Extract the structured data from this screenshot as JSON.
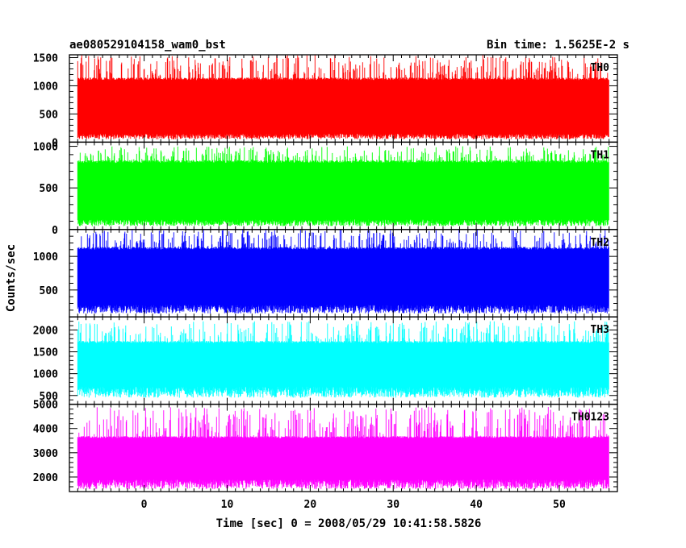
{
  "chart_data": {
    "type": "line",
    "title_left": "ae080529104158_wam0_bst",
    "title_right": "Bin time: 1.5625E-2 s",
    "xlabel": "Time [sec] 0 = 2008/05/29 10:41:58.5826",
    "ylabel": "Counts/sec",
    "xlim": [
      -9,
      57
    ],
    "x_data_range": [
      -8,
      56
    ],
    "x_ticks": [
      0,
      10,
      20,
      30,
      40,
      50
    ],
    "x_tick_labels": [
      "0",
      "10",
      "20",
      "30",
      "40",
      "50"
    ],
    "panels": [
      {
        "name": "TH0",
        "color": "#ff0000",
        "ylim": [
          0,
          1550
        ],
        "y_ticks": [
          0,
          500,
          1000,
          1500
        ],
        "y_tick_labels": [
          "0",
          "500",
          "1000",
          "1500"
        ],
        "typical_range": [
          150,
          1100
        ],
        "envelope": [
          50,
          1550
        ]
      },
      {
        "name": "TH1",
        "color": "#00ff00",
        "ylim": [
          0,
          1050
        ],
        "y_ticks": [
          0,
          500,
          1000
        ],
        "y_tick_labels": [
          "0",
          "500",
          "1000"
        ],
        "typical_range": [
          120,
          800
        ],
        "envelope": [
          40,
          1000
        ]
      },
      {
        "name": "TH2",
        "color": "#0000ff",
        "ylim": [
          100,
          1400
        ],
        "y_ticks": [
          500,
          1000
        ],
        "y_tick_labels": [
          "500",
          "1000"
        ],
        "typical_range": [
          280,
          1100
        ],
        "envelope": [
          150,
          1400
        ]
      },
      {
        "name": "TH3",
        "color": "#00ffff",
        "ylim": [
          300,
          2300
        ],
        "y_ticks": [
          500,
          1000,
          1500,
          2000
        ],
        "y_tick_labels": [
          "500",
          "1000",
          "1500",
          "2000"
        ],
        "typical_range": [
          700,
          1700
        ],
        "envelope": [
          450,
          2200
        ]
      },
      {
        "name": "TH0123",
        "color": "#ff00ff",
        "ylim": [
          1400,
          5000
        ],
        "y_ticks": [
          2000,
          3000,
          4000,
          5000
        ],
        "y_tick_labels": [
          "2000",
          "3000",
          "4000",
          "5000"
        ],
        "typical_range": [
          1900,
          3600
        ],
        "envelope": [
          1500,
          4900
        ]
      }
    ]
  }
}
